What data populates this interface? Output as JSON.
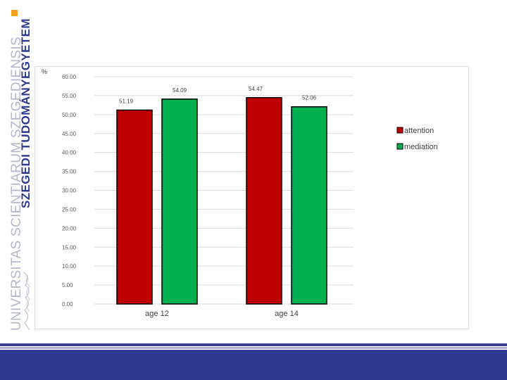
{
  "branding": {
    "university_name": "SZEGEDI TUDOMÁNYEGYETEM",
    "latin_name": "UNIVERSITAS SCIENTIARUM SZEGEDIENSIS",
    "accent_color": "#f2a21c",
    "brand_color": "#2b3990"
  },
  "chart_data": {
    "type": "bar",
    "ylabel": "%",
    "ylim": [
      0,
      60
    ],
    "y_ticks": [
      "0.00",
      "5.00",
      "10.00",
      "15.00",
      "20.00",
      "25.00",
      "30.00",
      "35.00",
      "40.00",
      "45.00",
      "50.00",
      "55.00",
      "60.00"
    ],
    "grid": true,
    "legend_position": "right",
    "categories": [
      "age 12",
      "age 14"
    ],
    "series": [
      {
        "name": "attention",
        "color": "#c00000",
        "values": [
          51.19,
          54.47
        ],
        "labels": [
          "51.19",
          "54.47"
        ]
      },
      {
        "name": "mediation",
        "color": "#00b050",
        "values": [
          54.09,
          52.06
        ],
        "labels": [
          "54.09",
          "52.06"
        ]
      }
    ]
  }
}
